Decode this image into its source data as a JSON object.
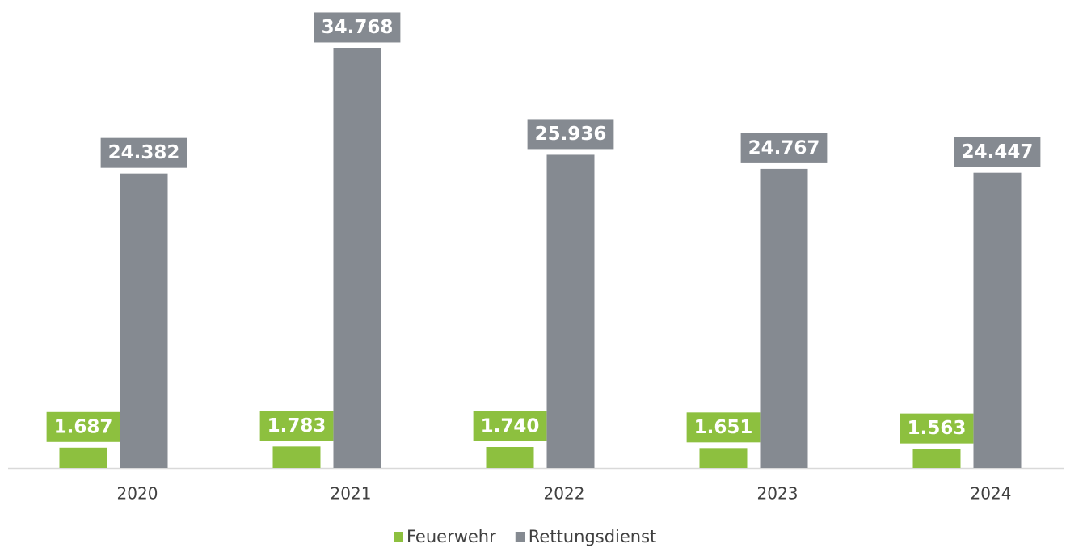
{
  "chart_data": {
    "type": "bar",
    "categories": [
      "2020",
      "2021",
      "2022",
      "2023",
      "2024"
    ],
    "series": [
      {
        "name": "Feuerwehr",
        "color": "#8dc03f",
        "values": [
          1687,
          1783,
          1740,
          1651,
          1563
        ],
        "value_labels": [
          "1.687",
          "1.783",
          "1.740",
          "1.651",
          "1.563"
        ]
      },
      {
        "name": "Rettungsdienst",
        "color": "#858a91",
        "values": [
          24382,
          34768,
          25936,
          24767,
          24447
        ],
        "value_labels": [
          "24.382",
          "34.768",
          "25.936",
          "24.767",
          "24.447"
        ]
      }
    ],
    "ylim": [
      0,
      35000
    ]
  }
}
